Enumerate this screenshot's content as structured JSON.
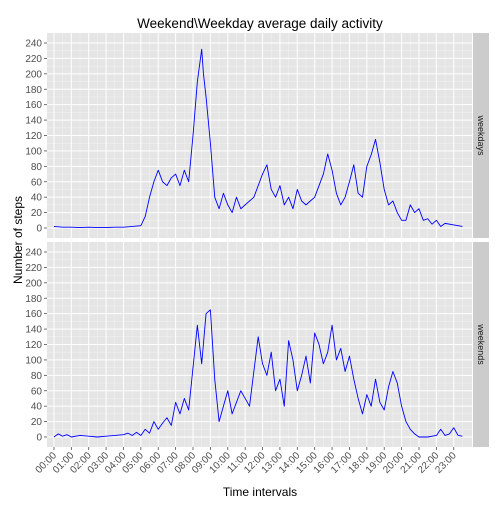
{
  "chart_data": {
    "type": "line",
    "title": "Weekend\\Weekday average daily activity",
    "xlabel": "Time intervals",
    "ylabel": "Number of steps",
    "ylim": [
      0,
      240
    ],
    "yticks": [
      0,
      20,
      40,
      60,
      80,
      100,
      120,
      140,
      160,
      180,
      200,
      220,
      240
    ],
    "xticks": [
      "00:00",
      "01:00",
      "02:00",
      "03:00",
      "04:00",
      "05:00",
      "06:00",
      "07:00",
      "08:00",
      "09:00",
      "10:00",
      "11:00",
      "12:00",
      "13:00",
      "14:00",
      "15:00",
      "16:00",
      "17:00",
      "18:00",
      "19:00",
      "20:00",
      "21:00",
      "22:00",
      "23:00"
    ],
    "line_color": "#0000ff",
    "panel_background": "#e5e5e5",
    "strip_background": "#cccccc",
    "grid": true,
    "facets": [
      {
        "label": "weekdays",
        "points": [
          [
            0,
            2
          ],
          [
            0.5,
            1
          ],
          [
            1,
            1
          ],
          [
            1.5,
            0.5
          ],
          [
            2,
            1
          ],
          [
            2.5,
            0.5
          ],
          [
            3,
            0.5
          ],
          [
            3.5,
            1
          ],
          [
            4,
            1
          ],
          [
            4.5,
            2
          ],
          [
            5,
            3
          ],
          [
            5.25,
            15
          ],
          [
            5.5,
            40
          ],
          [
            5.75,
            60
          ],
          [
            6,
            75
          ],
          [
            6.25,
            60
          ],
          [
            6.5,
            55
          ],
          [
            6.75,
            65
          ],
          [
            7,
            70
          ],
          [
            7.25,
            55
          ],
          [
            7.5,
            75
          ],
          [
            7.75,
            60
          ],
          [
            8,
            120
          ],
          [
            8.25,
            190
          ],
          [
            8.5,
            232
          ],
          [
            8.6,
            200
          ],
          [
            8.75,
            170
          ],
          [
            9,
            110
          ],
          [
            9.25,
            40
          ],
          [
            9.5,
            25
          ],
          [
            9.75,
            45
          ],
          [
            10,
            30
          ],
          [
            10.25,
            20
          ],
          [
            10.5,
            40
          ],
          [
            10.75,
            25
          ],
          [
            11,
            30
          ],
          [
            11.5,
            40
          ],
          [
            11.75,
            55
          ],
          [
            12,
            70
          ],
          [
            12.25,
            82
          ],
          [
            12.5,
            50
          ],
          [
            12.75,
            40
          ],
          [
            13,
            55
          ],
          [
            13.25,
            30
          ],
          [
            13.5,
            40
          ],
          [
            13.75,
            25
          ],
          [
            14,
            50
          ],
          [
            14.25,
            35
          ],
          [
            14.5,
            30
          ],
          [
            14.75,
            35
          ],
          [
            15,
            40
          ],
          [
            15.5,
            70
          ],
          [
            15.75,
            96
          ],
          [
            16,
            75
          ],
          [
            16.25,
            45
          ],
          [
            16.5,
            30
          ],
          [
            16.75,
            40
          ],
          [
            17,
            60
          ],
          [
            17.25,
            82
          ],
          [
            17.5,
            45
          ],
          [
            17.75,
            40
          ],
          [
            18,
            80
          ],
          [
            18.25,
            95
          ],
          [
            18.5,
            115
          ],
          [
            18.75,
            85
          ],
          [
            19,
            50
          ],
          [
            19.25,
            30
          ],
          [
            19.5,
            35
          ],
          [
            19.75,
            20
          ],
          [
            20,
            10
          ],
          [
            20.25,
            10
          ],
          [
            20.5,
            30
          ],
          [
            20.75,
            20
          ],
          [
            21,
            25
          ],
          [
            21.25,
            10
          ],
          [
            21.5,
            12
          ],
          [
            21.75,
            5
          ],
          [
            22,
            10
          ],
          [
            22.25,
            2
          ],
          [
            22.5,
            6
          ],
          [
            23,
            4
          ],
          [
            23.5,
            2
          ]
        ]
      },
      {
        "label": "weekends",
        "points": [
          [
            0,
            0
          ],
          [
            0.25,
            4
          ],
          [
            0.5,
            1
          ],
          [
            0.75,
            3
          ],
          [
            1,
            0
          ],
          [
            1.5,
            2
          ],
          [
            2,
            1
          ],
          [
            2.5,
            0
          ],
          [
            3,
            1
          ],
          [
            3.5,
            2
          ],
          [
            4,
            3
          ],
          [
            4.25,
            5
          ],
          [
            4.5,
            2
          ],
          [
            4.75,
            6
          ],
          [
            5,
            2
          ],
          [
            5.25,
            10
          ],
          [
            5.5,
            5
          ],
          [
            5.75,
            20
          ],
          [
            6,
            10
          ],
          [
            6.25,
            18
          ],
          [
            6.5,
            25
          ],
          [
            6.75,
            15
          ],
          [
            7,
            45
          ],
          [
            7.25,
            30
          ],
          [
            7.5,
            50
          ],
          [
            7.75,
            35
          ],
          [
            8,
            90
          ],
          [
            8.25,
            145
          ],
          [
            8.5,
            95
          ],
          [
            8.75,
            160
          ],
          [
            9,
            165
          ],
          [
            9.25,
            75
          ],
          [
            9.5,
            20
          ],
          [
            9.75,
            40
          ],
          [
            10,
            60
          ],
          [
            10.25,
            30
          ],
          [
            10.5,
            45
          ],
          [
            10.75,
            60
          ],
          [
            11,
            50
          ],
          [
            11.25,
            40
          ],
          [
            11.5,
            85
          ],
          [
            11.75,
            130
          ],
          [
            12,
            95
          ],
          [
            12.25,
            80
          ],
          [
            12.5,
            110
          ],
          [
            12.75,
            60
          ],
          [
            13,
            75
          ],
          [
            13.25,
            40
          ],
          [
            13.5,
            125
          ],
          [
            13.75,
            100
          ],
          [
            14,
            60
          ],
          [
            14.25,
            80
          ],
          [
            14.5,
            105
          ],
          [
            14.75,
            70
          ],
          [
            15,
            135
          ],
          [
            15.25,
            120
          ],
          [
            15.5,
            95
          ],
          [
            15.75,
            110
          ],
          [
            16,
            145
          ],
          [
            16.25,
            100
          ],
          [
            16.5,
            115
          ],
          [
            16.75,
            85
          ],
          [
            17,
            105
          ],
          [
            17.25,
            75
          ],
          [
            17.5,
            50
          ],
          [
            17.75,
            30
          ],
          [
            18,
            55
          ],
          [
            18.25,
            40
          ],
          [
            18.5,
            75
          ],
          [
            18.75,
            45
          ],
          [
            19,
            35
          ],
          [
            19.25,
            65
          ],
          [
            19.5,
            85
          ],
          [
            19.75,
            70
          ],
          [
            20,
            40
          ],
          [
            20.25,
            20
          ],
          [
            20.5,
            10
          ],
          [
            20.75,
            4
          ],
          [
            21,
            0
          ],
          [
            21.5,
            0
          ],
          [
            22,
            2
          ],
          [
            22.25,
            10
          ],
          [
            22.5,
            2
          ],
          [
            22.75,
            4
          ],
          [
            23,
            12
          ],
          [
            23.25,
            2
          ],
          [
            23.5,
            1
          ]
        ]
      }
    ]
  }
}
